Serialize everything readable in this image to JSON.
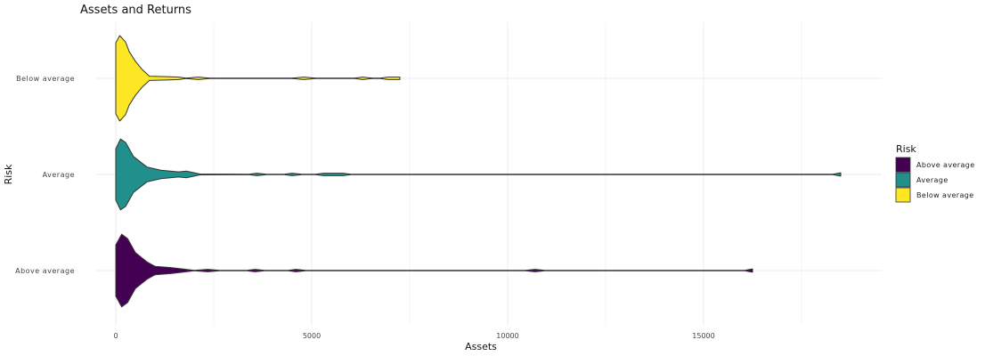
{
  "chart_data": {
    "type": "violin",
    "title": "Assets and Returns",
    "xlabel": "Assets",
    "ylabel": "Risk",
    "xlim": [
      -500,
      19500
    ],
    "x_ticks": [
      0,
      5000,
      10000,
      15000
    ],
    "x_tick_labels": [
      "0",
      "5000",
      "10000",
      "15000"
    ],
    "categories": [
      "Below average",
      "Average",
      "Above average"
    ],
    "grid": true,
    "legend": {
      "title": "Risk",
      "position": "right",
      "entries": [
        "Above average",
        "Average",
        "Below average"
      ]
    },
    "colors": {
      "Above average": "#440154",
      "Average": "#21908C",
      "Below average": "#FDE725"
    },
    "series": [
      {
        "name": "Below average",
        "profile": [
          [
            0,
            0.83
          ],
          [
            100,
            1.0
          ],
          [
            250,
            0.85
          ],
          [
            340,
            0.63
          ],
          [
            500,
            0.4
          ],
          [
            680,
            0.2
          ],
          [
            860,
            0.05
          ],
          [
            1300,
            0.04
          ],
          [
            1600,
            0.03
          ],
          [
            1800,
            0.006
          ],
          [
            2100,
            0.03
          ],
          [
            2400,
            0.006
          ],
          [
            4500,
            0.006
          ],
          [
            4800,
            0.03
          ],
          [
            5100,
            0.006
          ],
          [
            6100,
            0.006
          ],
          [
            6300,
            0.03
          ],
          [
            6550,
            0.006
          ],
          [
            6750,
            0.006
          ],
          [
            6950,
            0.03
          ],
          [
            7250,
            0.03
          ]
        ]
      },
      {
        "name": "Average",
        "profile": [
          [
            0,
            0.6
          ],
          [
            120,
            0.83
          ],
          [
            250,
            0.75
          ],
          [
            450,
            0.42
          ],
          [
            800,
            0.17
          ],
          [
            1150,
            0.1
          ],
          [
            1600,
            0.06
          ],
          [
            1800,
            0.08
          ],
          [
            2150,
            0.01
          ],
          [
            3400,
            0.006
          ],
          [
            3600,
            0.03
          ],
          [
            3850,
            0.006
          ],
          [
            4300,
            0.006
          ],
          [
            4500,
            0.03
          ],
          [
            4750,
            0.006
          ],
          [
            5100,
            0.006
          ],
          [
            5300,
            0.03
          ],
          [
            5800,
            0.03
          ],
          [
            6000,
            0.006
          ],
          [
            18300,
            0.006
          ],
          [
            18500,
            0.04
          ]
        ]
      },
      {
        "name": "Above average",
        "profile": [
          [
            0,
            0.6
          ],
          [
            150,
            0.85
          ],
          [
            300,
            0.75
          ],
          [
            500,
            0.42
          ],
          [
            800,
            0.2
          ],
          [
            1000,
            0.1
          ],
          [
            1400,
            0.07
          ],
          [
            1700,
            0.04
          ],
          [
            2000,
            0.006
          ],
          [
            2350,
            0.03
          ],
          [
            2650,
            0.006
          ],
          [
            3350,
            0.006
          ],
          [
            3550,
            0.03
          ],
          [
            3800,
            0.006
          ],
          [
            4400,
            0.006
          ],
          [
            4600,
            0.03
          ],
          [
            4850,
            0.006
          ],
          [
            10450,
            0.006
          ],
          [
            10700,
            0.03
          ],
          [
            10950,
            0.006
          ],
          [
            16050,
            0.006
          ],
          [
            16250,
            0.04
          ]
        ]
      }
    ]
  }
}
